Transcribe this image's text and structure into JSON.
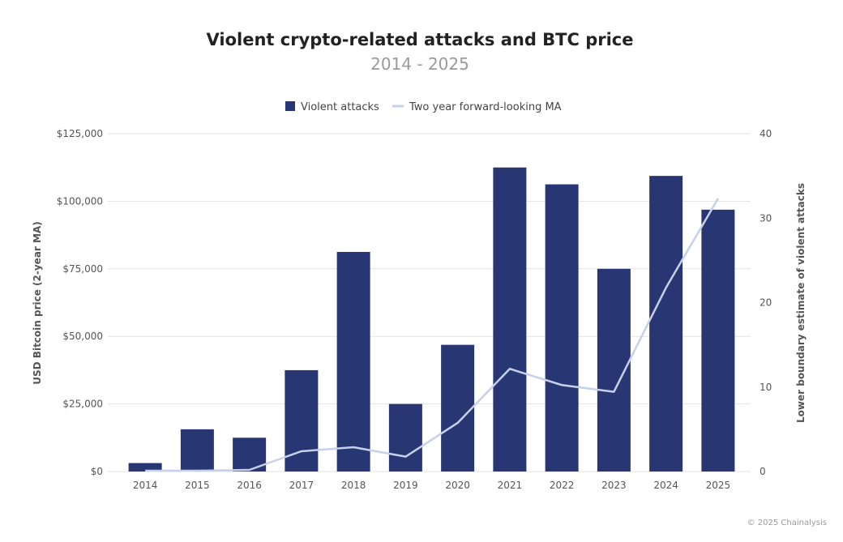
{
  "chart_data": {
    "type": "bar",
    "title": "Violent crypto-related attacks and BTC price",
    "subtitle": "2014 - 2025",
    "categories": [
      "2014",
      "2015",
      "2016",
      "2017",
      "2018",
      "2019",
      "2020",
      "2021",
      "2022",
      "2023",
      "2024",
      "2025"
    ],
    "series": [
      {
        "name": "Violent attacks",
        "type": "bar",
        "axis": "right",
        "color": "#283673",
        "values": [
          1,
          5,
          4,
          12,
          26,
          8,
          15,
          36,
          34,
          24,
          35,
          31
        ]
      },
      {
        "name": "Two year forward-looking MA",
        "type": "line",
        "axis": "left",
        "color": "#c5d0ea",
        "values": [
          300,
          300,
          600,
          7500,
          9000,
          5500,
          18000,
          38000,
          32000,
          29500,
          68000,
          101000
        ]
      }
    ],
    "y_left": {
      "label": "USD Bitcoin price (2-year MA)",
      "range": [
        0,
        125000
      ],
      "ticks": [
        0,
        25000,
        50000,
        75000,
        100000,
        125000
      ],
      "tick_labels": [
        "$0",
        "$25,000",
        "$50,000",
        "$75,000",
        "$100,000",
        "$125,000"
      ]
    },
    "y_right": {
      "label": "Lower boundary estimate of violent attacks",
      "range": [
        0,
        40
      ],
      "ticks": [
        0,
        10,
        20,
        30,
        40
      ],
      "tick_labels": [
        "0",
        "10",
        "20",
        "30",
        "40"
      ]
    },
    "legend": {
      "position": "top-center",
      "items": [
        {
          "label": "Violent attacks",
          "kind": "square",
          "color": "#283673"
        },
        {
          "label": "Two year forward-looking MA",
          "kind": "line",
          "color": "#c5d0ea"
        }
      ]
    },
    "grid": true,
    "copyright": "© 2025 Chainalysis"
  }
}
